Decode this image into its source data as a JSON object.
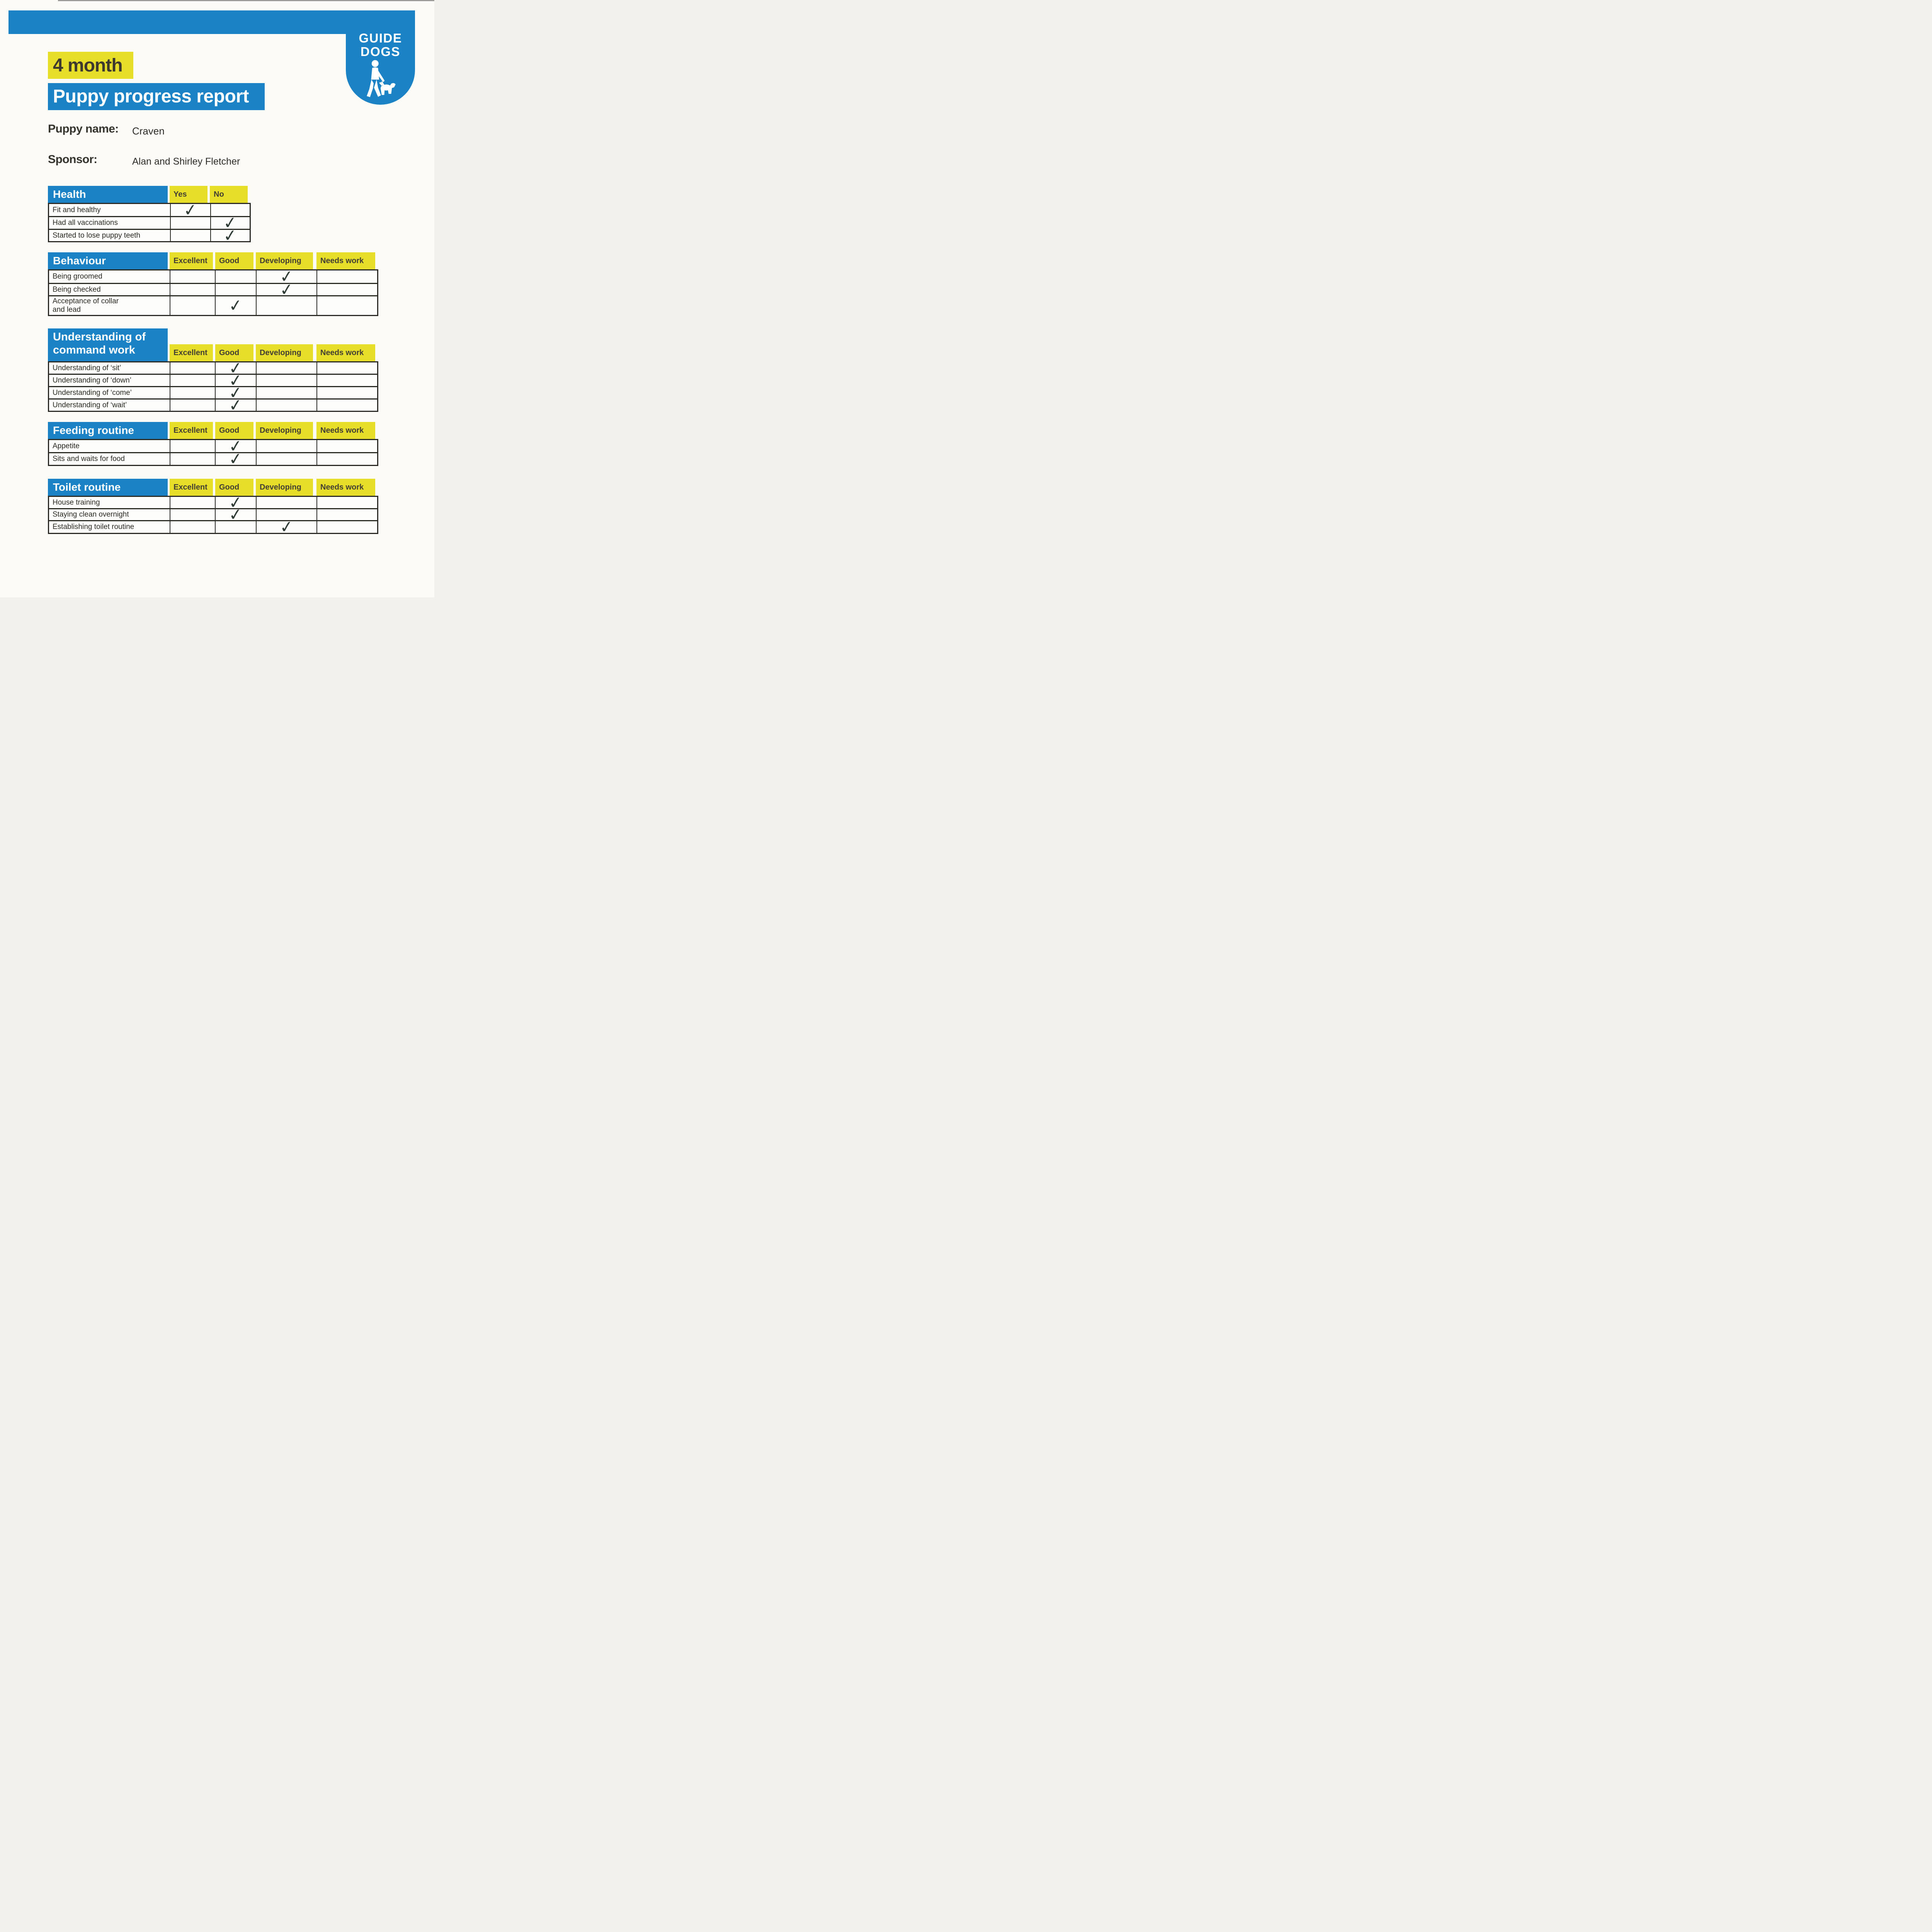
{
  "logo": {
    "line1": "GUIDE",
    "line2": "DOGS"
  },
  "header": {
    "period": "4 month",
    "title": "Puppy progress report"
  },
  "fields": [
    {
      "label": "Puppy name:",
      "value": "Craven"
    },
    {
      "label": "Sponsor:",
      "value": "Alan and Shirley Fletcher"
    }
  ],
  "check_glyph": "✓",
  "colors": {
    "blue": "#1b82c5",
    "yellow": "#e6de28",
    "paper": "#fcfbf7",
    "check": "#2e3a34"
  },
  "tables": [
    {
      "title": "Health",
      "columns": [
        "Yes",
        "No"
      ],
      "rows": [
        {
          "label": "Fit and healthy",
          "checked": "Yes"
        },
        {
          "label": "Had all vaccinations",
          "checked": "No"
        },
        {
          "label": "Started to lose puppy teeth",
          "checked": "No"
        }
      ]
    },
    {
      "title": "Behaviour",
      "columns": [
        "Excellent",
        "Good",
        "Developing",
        "Needs work"
      ],
      "rows": [
        {
          "label": "Being groomed",
          "checked": "Developing"
        },
        {
          "label": "Being checked",
          "checked": "Developing"
        },
        {
          "label": "Acceptance of collar\nand lead",
          "checked": "Good"
        }
      ]
    },
    {
      "title": "Understanding of\ncommand work",
      "columns": [
        "Excellent",
        "Good",
        "Developing",
        "Needs work"
      ],
      "rows": [
        {
          "label": "Understanding of ‘sit’",
          "checked": "Good"
        },
        {
          "label": "Understanding of ‘down’",
          "checked": "Good"
        },
        {
          "label": "Understanding of ‘come’",
          "checked": "Good"
        },
        {
          "label": "Understanding of ‘wait’",
          "checked": "Good"
        }
      ]
    },
    {
      "title": "Feeding routine",
      "columns": [
        "Excellent",
        "Good",
        "Developing",
        "Needs work"
      ],
      "rows": [
        {
          "label": "Appetite",
          "checked": "Good"
        },
        {
          "label": "Sits and waits for food",
          "checked": "Good"
        }
      ]
    },
    {
      "title": "Toilet routine",
      "columns": [
        "Excellent",
        "Good",
        "Developing",
        "Needs work"
      ],
      "rows": [
        {
          "label": "House training",
          "checked": "Good"
        },
        {
          "label": "Staying clean overnight",
          "checked": "Good"
        },
        {
          "label": "Establishing toilet routine",
          "checked": "Developing"
        }
      ]
    }
  ]
}
